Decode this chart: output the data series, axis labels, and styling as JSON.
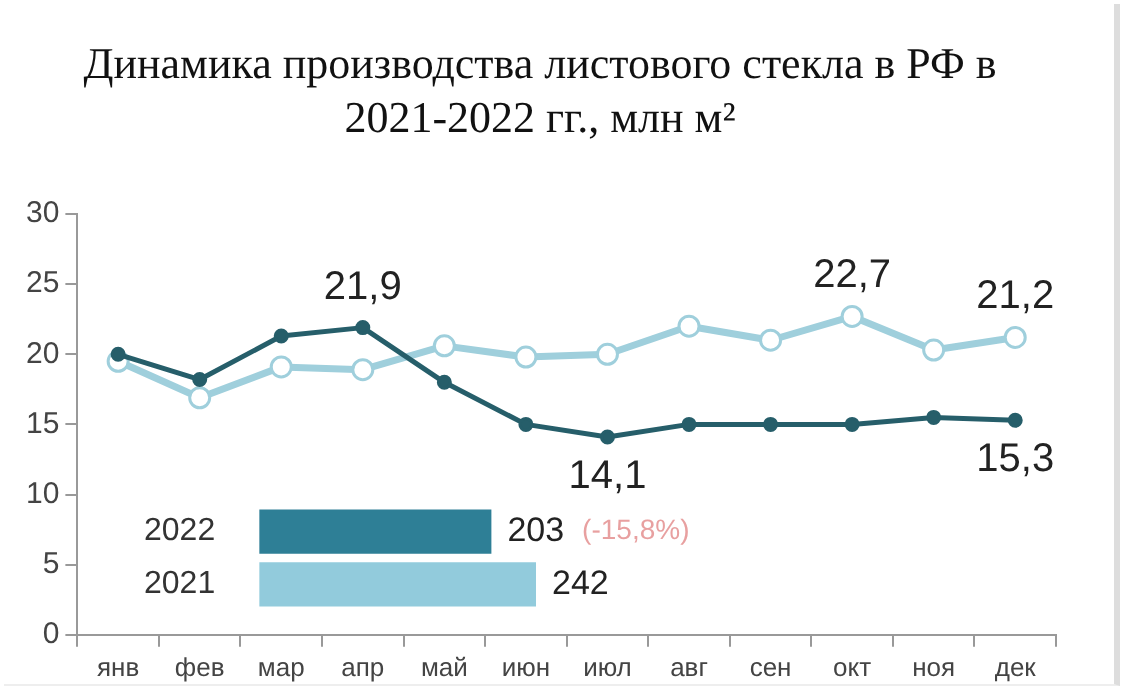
{
  "chart_data": [
    {
      "type": "line",
      "title": "Динамика производства листового стекла в РФ в 2021-2022 гг., млн м²",
      "categories": [
        "янв",
        "фев",
        "мар",
        "апр",
        "май",
        "июн",
        "июл",
        "авг",
        "сен",
        "окт",
        "ноя",
        "дек"
      ],
      "series": [
        {
          "color": "#265e6a",
          "values": [
            20,
            18.2,
            21.3,
            21.9,
            18,
            15,
            14.1,
            15,
            15,
            15,
            15.5,
            15.3
          ],
          "value_labels": [
            null,
            null,
            null,
            "21,9",
            null,
            null,
            "14,1",
            null,
            null,
            null,
            null,
            "15,3"
          ]
        },
        {
          "color": "#9fcfdc",
          "values": [
            19.5,
            16.9,
            19.1,
            18.9,
            20.6,
            19.8,
            20,
            22,
            21,
            22.7,
            20.3,
            21.2
          ],
          "value_labels": [
            null,
            null,
            null,
            null,
            null,
            null,
            null,
            null,
            null,
            "22,7",
            null,
            "21,2"
          ]
        }
      ],
      "ylim": [
        0,
        30
      ],
      "yticks": [
        0,
        5,
        10,
        15,
        20,
        25,
        30
      ],
      "grid": false,
      "legend": false,
      "marker": "circle"
    },
    {
      "type": "bar",
      "orientation": "horizontal",
      "categories": [
        "2022",
        "2021"
      ],
      "values": [
        203,
        242
      ],
      "colors": [
        "#2e7f96",
        "#92cbdc"
      ],
      "data_labels": true,
      "tick_labels": "y",
      "legend": false,
      "annotations": [
        "(-15,8%)"
      ]
    }
  ]
}
